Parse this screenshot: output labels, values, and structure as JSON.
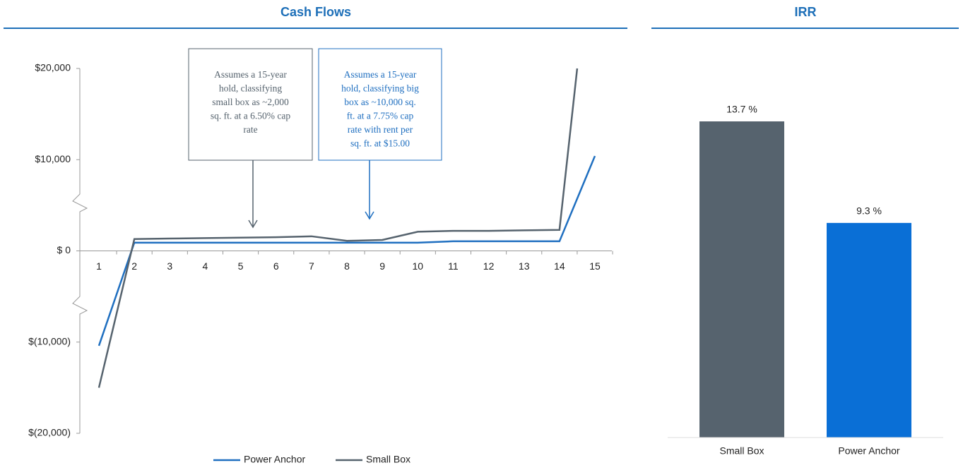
{
  "chart_data": [
    {
      "type": "line",
      "title": "Cash Flows",
      "x": [
        1,
        2,
        3,
        4,
        5,
        6,
        7,
        8,
        9,
        10,
        11,
        12,
        13,
        14,
        15
      ],
      "xlim": [
        1,
        15
      ],
      "xticks": [
        1,
        2,
        3,
        4,
        5,
        6,
        7,
        8,
        9,
        10,
        11,
        12,
        13,
        14,
        15
      ],
      "ylim": [
        -20000,
        20000
      ],
      "yticks": [
        {
          "value": 20000,
          "label": "$20,000"
        },
        {
          "value": 10000,
          "label": "$10,000"
        },
        {
          "value": 0,
          "label": "$ 0"
        },
        {
          "value": -10000,
          "label": "$(10,000)"
        },
        {
          "value": -20000,
          "label": "$(20,000)"
        }
      ],
      "series": [
        {
          "name": "Power Anchor",
          "color": "#1f6fc0",
          "values": [
            -10400,
            900,
            900,
            900,
            900,
            900,
            900,
            900,
            900,
            900,
            1050,
            1050,
            1050,
            1050,
            10400
          ]
        },
        {
          "name": "Small Box",
          "color": "#56636e",
          "x": [
            1,
            2,
            3,
            4,
            5,
            6,
            7,
            8,
            9,
            10,
            11,
            12,
            13,
            14,
            14.5
          ],
          "values": [
            -15000,
            1300,
            1350,
            1400,
            1450,
            1500,
            1600,
            1100,
            1200,
            2100,
            2200,
            2200,
            2250,
            2300,
            20000
          ]
        }
      ],
      "annotations": [
        {
          "lines": [
            "Assumes a 15-year",
            "hold, classifying",
            "small box as ~2,000",
            "sq. ft. at a 6.50% cap",
            "rate"
          ],
          "color": "#56636e"
        },
        {
          "lines": [
            "Assumes a 15-year",
            "hold, classifying big",
            "box as ~10,000 sq.",
            "ft. at a 7.75% cap",
            "rate with rent per",
            "sq. ft. at $15.00"
          ],
          "color": "#1f6fc0"
        }
      ]
    },
    {
      "type": "bar",
      "title": "IRR",
      "categories": [
        "Small Box",
        "Power Anchor"
      ],
      "values": [
        13.7,
        9.3
      ],
      "value_labels": [
        "13.7 %",
        "9.3 %"
      ],
      "colors": [
        "#56636e",
        "#0a6fd6"
      ],
      "ylim": [
        0,
        15
      ]
    }
  ]
}
